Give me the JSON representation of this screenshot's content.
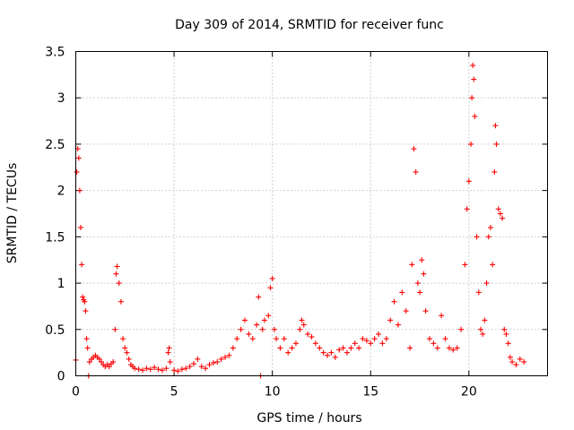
{
  "chart_data": {
    "type": "scatter",
    "title": "Day 309 of 2014, SRMTID for receiver func",
    "xlabel": "GPS time / hours",
    "ylabel": "SRMTID / TECUs",
    "xlim": [
      0,
      24
    ],
    "ylim": [
      0,
      3.5
    ],
    "xticks": [
      0,
      5,
      10,
      15,
      20
    ],
    "xtick_labels": [
      "0",
      "5",
      "10",
      "15",
      "20"
    ],
    "yticks": [
      0,
      0.5,
      1,
      1.5,
      2,
      2.5,
      3,
      3.5
    ],
    "ytick_labels": [
      "0",
      "0.5",
      "1",
      "1.5",
      "2",
      "2.5",
      "3",
      "3.5"
    ],
    "grid": true,
    "marker": "+",
    "color": "#ff0000",
    "series": [
      {
        "name": "SRMTID",
        "points": [
          [
            0.0,
            0.17
          ],
          [
            0.05,
            2.2
          ],
          [
            0.1,
            2.45
          ],
          [
            0.15,
            2.35
          ],
          [
            0.2,
            2.0
          ],
          [
            0.25,
            1.6
          ],
          [
            0.3,
            1.2
          ],
          [
            0.35,
            0.85
          ],
          [
            0.4,
            0.82
          ],
          [
            0.45,
            0.8
          ],
          [
            0.5,
            0.7
          ],
          [
            0.55,
            0.4
          ],
          [
            0.6,
            0.3
          ],
          [
            0.65,
            0.0
          ],
          [
            0.7,
            0.15
          ],
          [
            0.8,
            0.18
          ],
          [
            0.9,
            0.2
          ],
          [
            1.0,
            0.22
          ],
          [
            1.1,
            0.2
          ],
          [
            1.2,
            0.18
          ],
          [
            1.3,
            0.15
          ],
          [
            1.4,
            0.12
          ],
          [
            1.5,
            0.1
          ],
          [
            1.6,
            0.12
          ],
          [
            1.7,
            0.1
          ],
          [
            1.8,
            0.13
          ],
          [
            1.9,
            0.15
          ],
          [
            2.0,
            0.5
          ],
          [
            2.05,
            1.1
          ],
          [
            2.1,
            1.18
          ],
          [
            2.2,
            1.0
          ],
          [
            2.3,
            0.8
          ],
          [
            2.4,
            0.4
          ],
          [
            2.5,
            0.3
          ],
          [
            2.6,
            0.25
          ],
          [
            2.7,
            0.18
          ],
          [
            2.8,
            0.12
          ],
          [
            2.9,
            0.1
          ],
          [
            3.0,
            0.08
          ],
          [
            3.2,
            0.07
          ],
          [
            3.4,
            0.06
          ],
          [
            3.6,
            0.08
          ],
          [
            3.8,
            0.07
          ],
          [
            4.0,
            0.09
          ],
          [
            4.2,
            0.07
          ],
          [
            4.4,
            0.06
          ],
          [
            4.6,
            0.08
          ],
          [
            4.7,
            0.25
          ],
          [
            4.75,
            0.3
          ],
          [
            4.8,
            0.15
          ],
          [
            5.0,
            0.06
          ],
          [
            5.2,
            0.05
          ],
          [
            5.4,
            0.07
          ],
          [
            5.6,
            0.08
          ],
          [
            5.8,
            0.1
          ],
          [
            6.0,
            0.13
          ],
          [
            6.2,
            0.18
          ],
          [
            6.4,
            0.1
          ],
          [
            6.6,
            0.08
          ],
          [
            6.8,
            0.12
          ],
          [
            7.0,
            0.14
          ],
          [
            7.2,
            0.15
          ],
          [
            7.4,
            0.18
          ],
          [
            7.6,
            0.2
          ],
          [
            7.8,
            0.22
          ],
          [
            8.0,
            0.3
          ],
          [
            8.2,
            0.4
          ],
          [
            8.4,
            0.5
          ],
          [
            8.6,
            0.6
          ],
          [
            8.8,
            0.45
          ],
          [
            9.0,
            0.4
          ],
          [
            9.2,
            0.55
          ],
          [
            9.3,
            0.85
          ],
          [
            9.4,
            0.0
          ],
          [
            9.5,
            0.5
          ],
          [
            9.6,
            0.6
          ],
          [
            9.8,
            0.65
          ],
          [
            9.9,
            0.95
          ],
          [
            10.0,
            1.05
          ],
          [
            10.1,
            0.5
          ],
          [
            10.2,
            0.4
          ],
          [
            10.4,
            0.3
          ],
          [
            10.6,
            0.4
          ],
          [
            10.8,
            0.25
          ],
          [
            11.0,
            0.3
          ],
          [
            11.2,
            0.35
          ],
          [
            11.4,
            0.5
          ],
          [
            11.5,
            0.6
          ],
          [
            11.6,
            0.55
          ],
          [
            11.8,
            0.45
          ],
          [
            12.0,
            0.42
          ],
          [
            12.2,
            0.35
          ],
          [
            12.4,
            0.3
          ],
          [
            12.6,
            0.25
          ],
          [
            12.8,
            0.22
          ],
          [
            13.0,
            0.25
          ],
          [
            13.2,
            0.2
          ],
          [
            13.4,
            0.28
          ],
          [
            13.6,
            0.3
          ],
          [
            13.8,
            0.25
          ],
          [
            14.0,
            0.3
          ],
          [
            14.2,
            0.35
          ],
          [
            14.4,
            0.3
          ],
          [
            14.6,
            0.4
          ],
          [
            14.8,
            0.38
          ],
          [
            15.0,
            0.35
          ],
          [
            15.2,
            0.4
          ],
          [
            15.4,
            0.45
          ],
          [
            15.6,
            0.35
          ],
          [
            15.8,
            0.4
          ],
          [
            16.0,
            0.6
          ],
          [
            16.2,
            0.8
          ],
          [
            16.4,
            0.55
          ],
          [
            16.6,
            0.9
          ],
          [
            16.8,
            0.7
          ],
          [
            17.0,
            0.3
          ],
          [
            17.1,
            1.2
          ],
          [
            17.2,
            2.45
          ],
          [
            17.3,
            2.2
          ],
          [
            17.4,
            1.0
          ],
          [
            17.5,
            0.9
          ],
          [
            17.6,
            1.25
          ],
          [
            17.7,
            1.1
          ],
          [
            17.8,
            0.7
          ],
          [
            18.0,
            0.4
          ],
          [
            18.2,
            0.35
          ],
          [
            18.4,
            0.3
          ],
          [
            18.6,
            0.65
          ],
          [
            18.8,
            0.4
          ],
          [
            19.0,
            0.3
          ],
          [
            19.2,
            0.28
          ],
          [
            19.4,
            0.3
          ],
          [
            19.6,
            0.5
          ],
          [
            19.8,
            1.2
          ],
          [
            19.9,
            1.8
          ],
          [
            20.0,
            2.1
          ],
          [
            20.1,
            2.5
          ],
          [
            20.15,
            3.0
          ],
          [
            20.2,
            3.35
          ],
          [
            20.25,
            3.2
          ],
          [
            20.3,
            2.8
          ],
          [
            20.4,
            1.5
          ],
          [
            20.5,
            0.9
          ],
          [
            20.6,
            0.5
          ],
          [
            20.7,
            0.45
          ],
          [
            20.8,
            0.6
          ],
          [
            20.9,
            1.0
          ],
          [
            21.0,
            1.5
          ],
          [
            21.1,
            1.6
          ],
          [
            21.2,
            1.2
          ],
          [
            21.3,
            2.2
          ],
          [
            21.35,
            2.7
          ],
          [
            21.4,
            2.5
          ],
          [
            21.5,
            1.8
          ],
          [
            21.6,
            1.75
          ],
          [
            21.7,
            1.7
          ],
          [
            21.8,
            0.5
          ],
          [
            21.9,
            0.45
          ],
          [
            22.0,
            0.35
          ],
          [
            22.1,
            0.2
          ],
          [
            22.2,
            0.15
          ],
          [
            22.4,
            0.12
          ],
          [
            22.6,
            0.18
          ],
          [
            22.8,
            0.15
          ]
        ]
      }
    ]
  }
}
